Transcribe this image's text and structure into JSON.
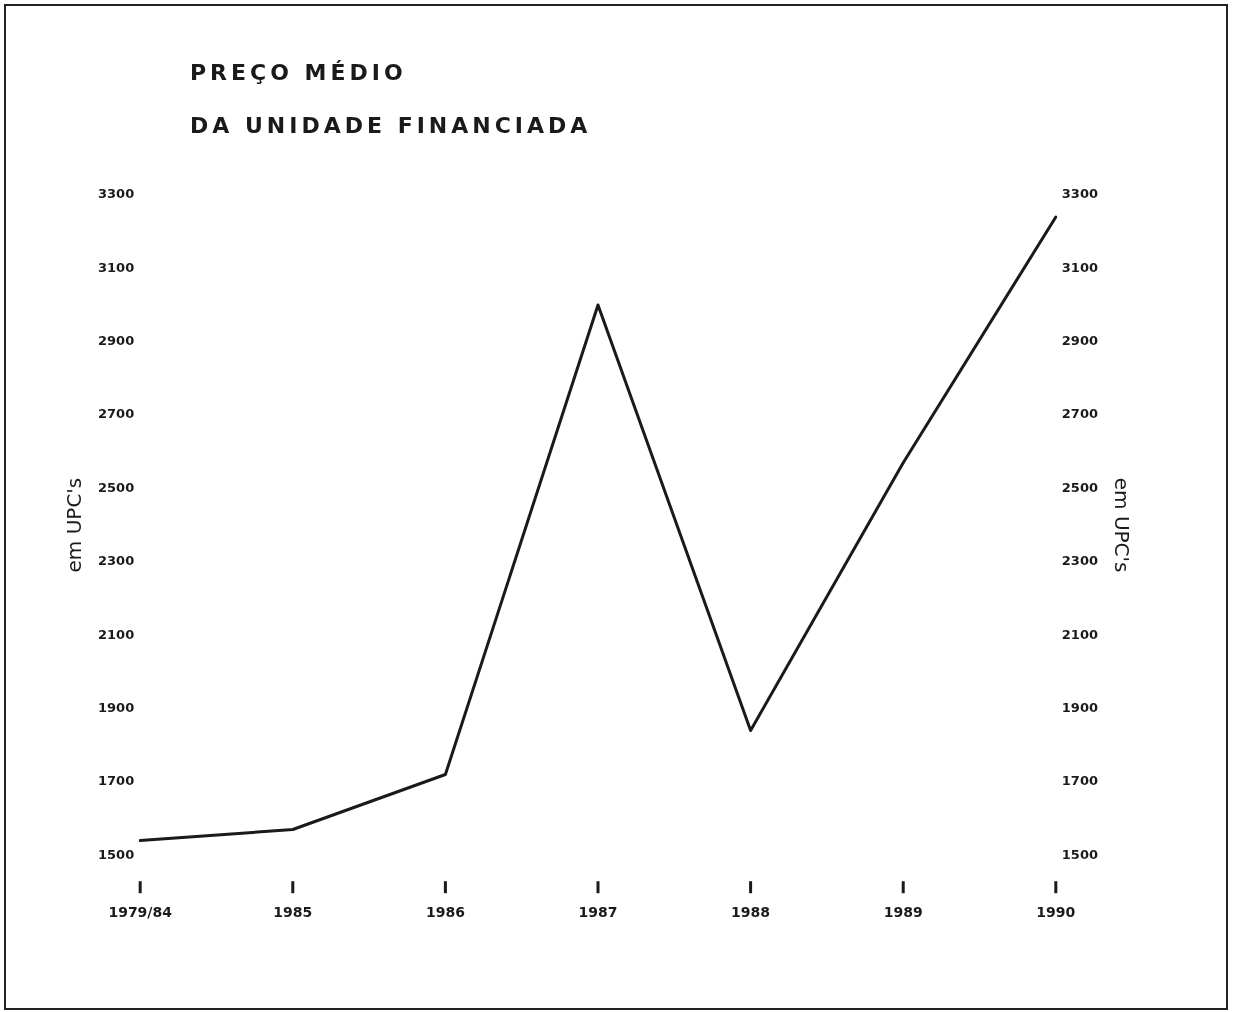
{
  "chart_data": {
    "type": "line",
    "title": "PREÇO MÉDIO",
    "subtitle": "DA UNIDADE FINANCIADA",
    "ylabel": "em UPC's",
    "y2label": "em UPC's",
    "categories": [
      "1979/84",
      "1985",
      "1986",
      "1987",
      "1988",
      "1989",
      "1990"
    ],
    "series": [
      {
        "color": "#1a1a1a",
        "values": [
          1540,
          1570,
          1720,
          3000,
          1840,
          2570,
          3240
        ]
      }
    ],
    "ylim": [
      1500,
      3300
    ],
    "yticks": [
      1500,
      1700,
      1900,
      2100,
      2300,
      2500,
      2700,
      2900,
      3100,
      3300
    ],
    "y2lim": [
      1500,
      3300
    ],
    "y2ticks": [
      1500,
      1700,
      1900,
      2100,
      2300,
      2500,
      2700,
      2900,
      3100,
      3300
    ],
    "grid": false,
    "legend": false,
    "marker": "none",
    "line_style": "solid"
  }
}
